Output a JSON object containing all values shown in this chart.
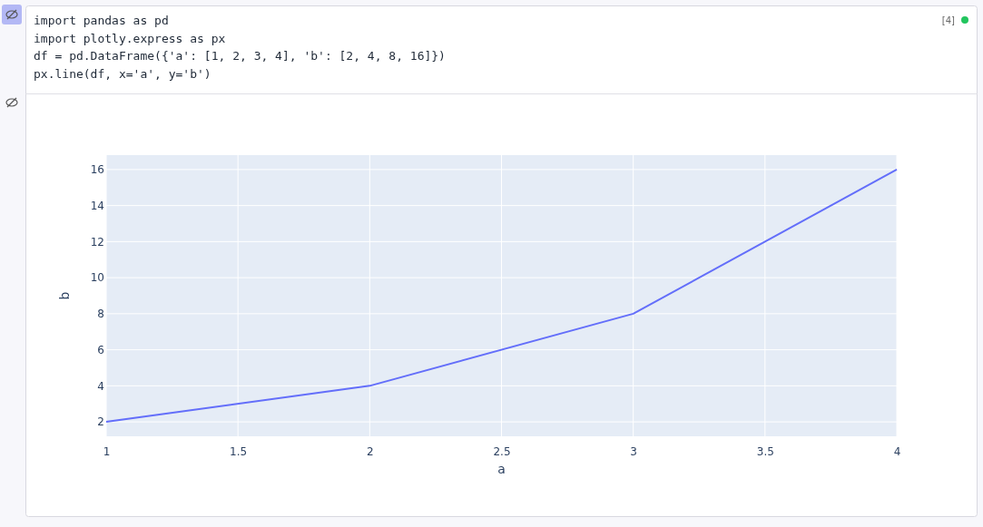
{
  "chart_data": {
    "type": "line",
    "xlabel": "a",
    "ylabel": "b",
    "x": [
      1,
      2,
      3,
      4
    ],
    "series": [
      {
        "color": "#636efa",
        "values": [
          2,
          4,
          8,
          16
        ]
      }
    ],
    "xlim": [
      1,
      4
    ],
    "xticks": [
      1,
      1.5,
      2,
      2.5,
      3,
      3.5,
      4
    ],
    "ylim": [
      1.2,
      16.8
    ],
    "yticks": [
      2,
      4,
      6,
      8,
      10,
      12,
      14,
      16
    ],
    "grid": true,
    "marker": "none",
    "line_style": "solid",
    "annotations": [
      "import pandas as pd",
      "import plotly.express as px",
      "df = pd.DataFrame({'a': [1, 2, 3, 4], 'b': [2, 4, 8, 16]})",
      "px.line(df, x='a', y='b')",
      "[4]"
    ]
  }
}
